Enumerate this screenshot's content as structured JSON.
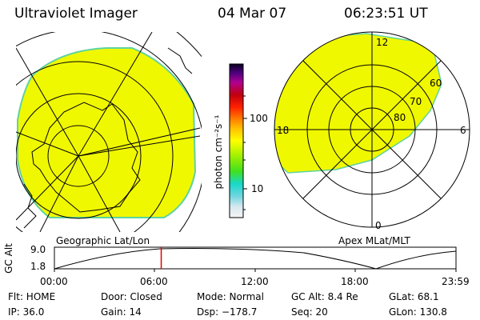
{
  "header": {
    "title": "Ultraviolet Imager",
    "date": "04 Mar 07",
    "time": "06:23:51 UT"
  },
  "colorbar": {
    "unit_label": "photon cm⁻²s⁻¹",
    "tick_100": "100",
    "tick_10": "10"
  },
  "left_map": {
    "label": "Geographic Lat/Lon"
  },
  "right_map": {
    "label": "Apex  MLat/MLT",
    "mlt_labels": {
      "top": "12",
      "left": "18",
      "right": "6",
      "bottom": "0"
    },
    "lat_labels": [
      "60",
      "70",
      "80"
    ]
  },
  "altitude_plot": {
    "ylabel": "GC Alt",
    "y_max": "9.0",
    "y_min": "1.8",
    "x_ticks": [
      "00:00",
      "06:00",
      "12:00",
      "18:00",
      "23:59"
    ],
    "current_time_fraction": 0.266
  },
  "info": {
    "flt": "Flt: HOME",
    "door": "Door: Closed",
    "mode": "Mode: Normal",
    "gc_alt": "GC Alt: 8.4 Re",
    "glat": "GLat:  68.1",
    "ip": "IP: 36.0",
    "gain": "Gain: 14",
    "dsp": "Dsp: −178.7",
    "seq": "Seq: 20",
    "glon": "GLon: 130.8"
  },
  "colors": {
    "aurora": "#f0f800",
    "aurora_edge": "#5fd3a0",
    "marker": "#e00000"
  }
}
